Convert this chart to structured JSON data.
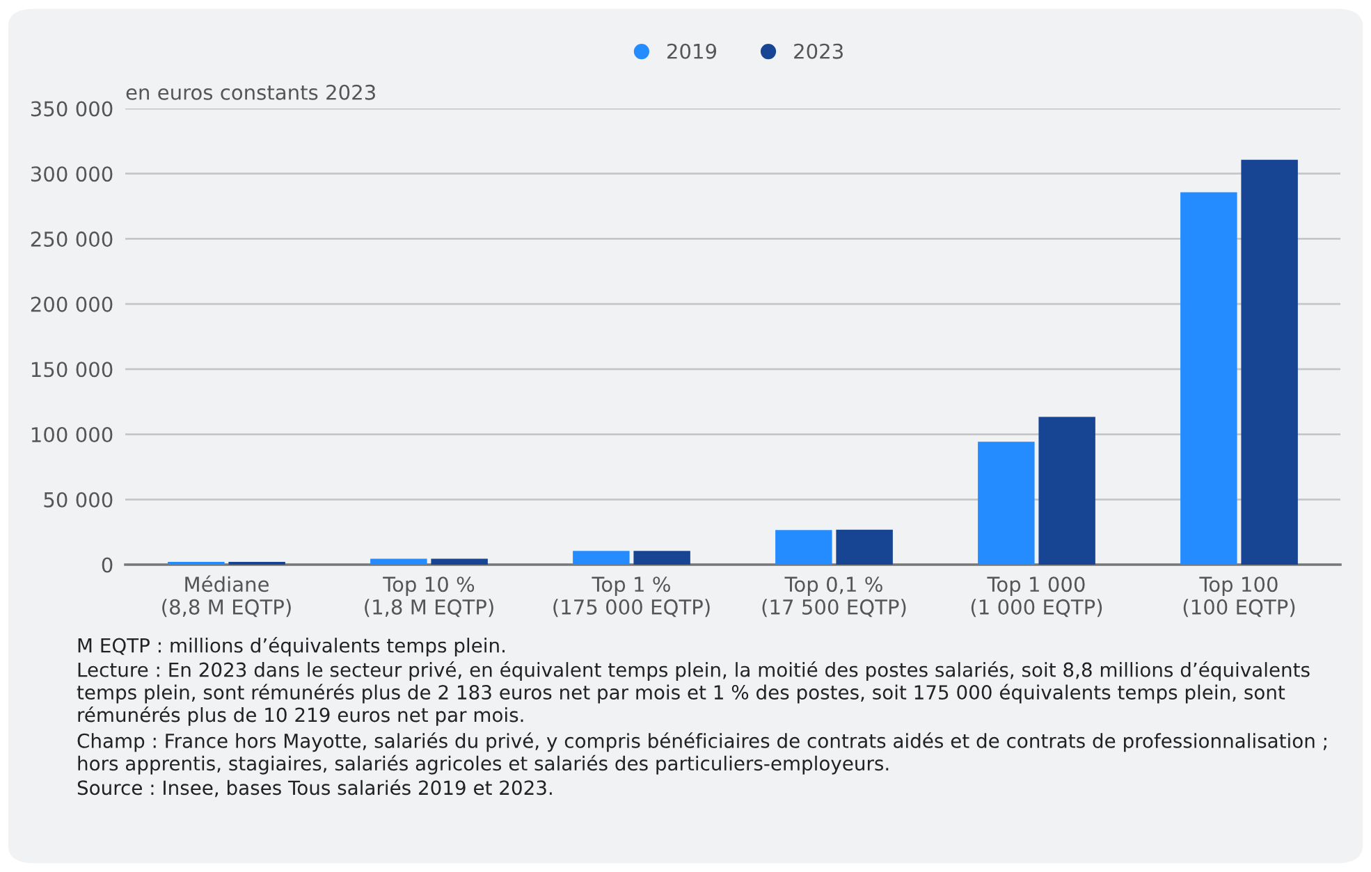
{
  "chart_data": {
    "type": "bar",
    "ylabel": "en euros constants 2023",
    "categories": [
      "Médiane\n(8,8 M EQTP)",
      "Top 10 %\n(1,8 M EQTP)",
      "Top 1 %\n(175 000 EQTP)",
      "Top 0,1 %\n(17 500 EQTP)",
      "Top 1 000\n(1 000 EQTP)",
      "Top 100\n(100 EQTP)"
    ],
    "series": [
      {
        "name": "2019",
        "color": "#258cff",
        "values": [
          2100,
          4500,
          10600,
          26600,
          94300,
          285700
        ]
      },
      {
        "name": "2023",
        "color": "#174593",
        "values": [
          2200,
          4600,
          10600,
          26800,
          113400,
          310600
        ]
      }
    ],
    "ylim": [
      0,
      350000
    ],
    "yticks": [
      0,
      {
        "value": 50000,
        "label": "50 000"
      },
      {
        "value": 100000,
        "label": "100 000"
      },
      {
        "value": 150000,
        "label": "150 000"
      },
      {
        "value": 200000,
        "label": "200 000"
      },
      {
        "value": 250000,
        "label": "250 000"
      },
      {
        "value": 300000,
        "label": "300 000"
      },
      {
        "value": 350000,
        "label": "350 000"
      }
    ],
    "grid": "y",
    "legend": "top",
    "annotations": [
      "M EQTP : millions d’équivalents temps plein.",
      "Lecture : En 2023 dans le secteur privé, en équivalent temps plein, la moitié des postes salariés, soit 8,8 millions d’équivalents temps plein, sont rémunérés plus de 2 183 euros net par mois et 1 % des postes, soit 175 000 équivalents temps plein, sont rémunérés plus de 10 219 euros net par mois.",
      "Champ : France hors Mayotte, salariés du privé, y compris bénéficiaires de contrats aidés et de contrats de professionnalisation ; hors apprentis, stagiaires, salariés agricoles et salariés des particuliers-employeurs.",
      "Source : Insee, bases Tous salariés 2019 et 2023."
    ]
  }
}
